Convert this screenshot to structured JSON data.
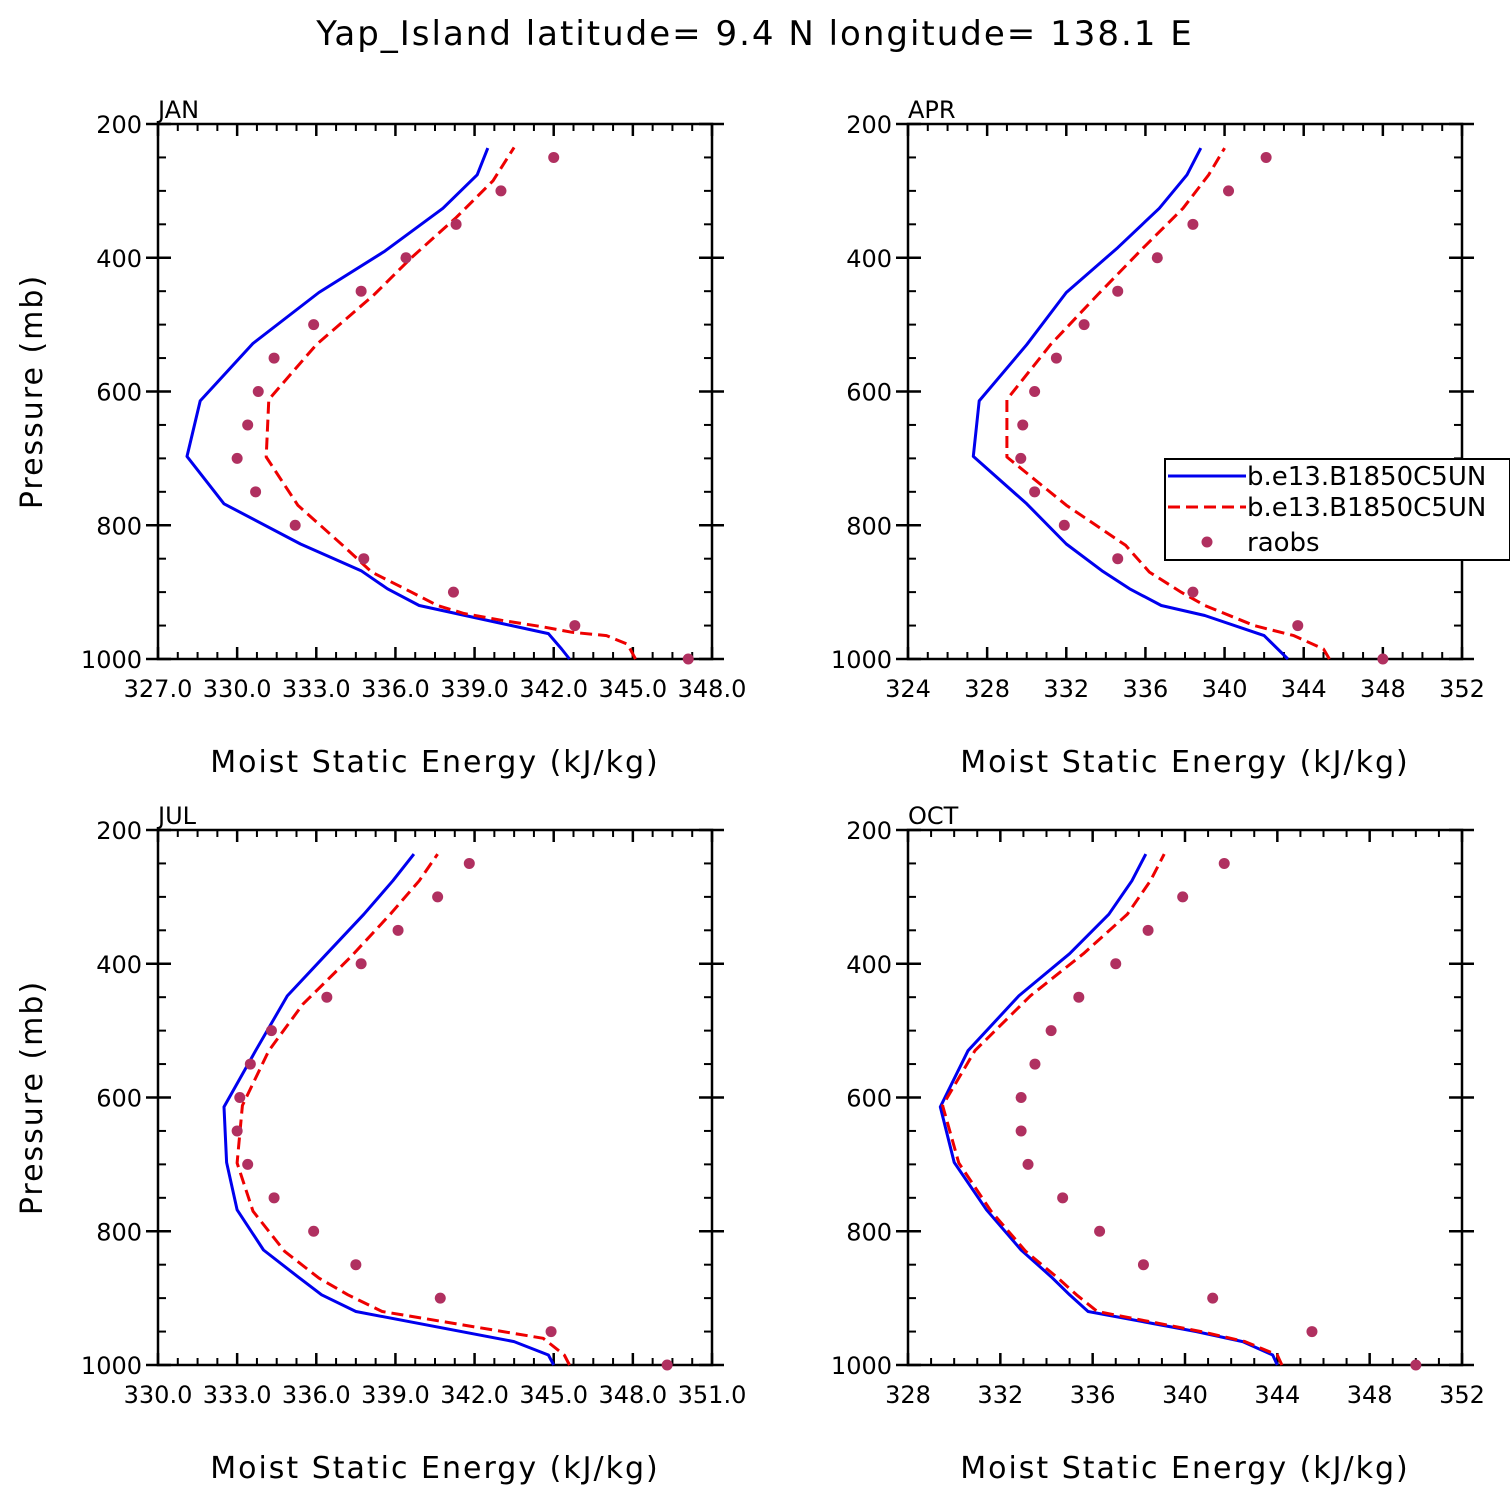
{
  "title": "Yap_Island  latitude= 9.4 N longitude= 138.1 E",
  "legend": {
    "entries": [
      "b.e13.B1850C5UN",
      "b.e13.B1850C5UN",
      "raobs"
    ]
  },
  "colors": {
    "model_a": "#0000ee",
    "model_b": "#ee0000",
    "raobs": "#b03060",
    "axis": "#000000"
  },
  "chart_data": [
    {
      "type": "line",
      "panel": "JAN",
      "xlabel": "Moist Static Energy (kJ/kg)",
      "ylabel": "Pressure (mb)",
      "xlim": [
        327,
        348
      ],
      "ylim": [
        1000,
        200
      ],
      "xticks": [
        327,
        330,
        333,
        336,
        339,
        342,
        345,
        348
      ],
      "xtick_labels": [
        "327.0",
        "330.0",
        "333.0",
        "336.0",
        "339.0",
        "342.0",
        "345.0",
        "348.0"
      ],
      "yticks": [
        200,
        400,
        600,
        800,
        1000
      ],
      "pressure_levels": [
        1000,
        975,
        950,
        925,
        900,
        875,
        850,
        825,
        800,
        775,
        750,
        725,
        700,
        675,
        650,
        625,
        600,
        550,
        500,
        450,
        400,
        350,
        300,
        250
      ],
      "series": [
        {
          "name": "b.e13.B1850C5UN",
          "style": "solid",
          "pressure": [
            1000,
            985,
            962,
            920,
            895,
            868,
            828,
            768,
            697,
            614,
            528,
            452,
            390,
            326,
            276,
            236
          ],
          "values": [
            342.6,
            342.3,
            341.8,
            336.9,
            335.7,
            334.7,
            332.4,
            329.5,
            328.1,
            328.6,
            330.6,
            333.1,
            335.6,
            337.8,
            339.1,
            339.5
          ]
        },
        {
          "name": "b.e13.B1850C5UN",
          "style": "dashed",
          "pressure": [
            1000,
            978,
            965,
            960,
            952,
            942,
            932,
            920,
            900,
            870,
            830,
            770,
            698,
            612,
            530,
            455,
            400,
            340,
            285,
            235
          ],
          "values": [
            345.1,
            344.8,
            344.0,
            342.7,
            341.6,
            340.0,
            338.6,
            337.6,
            336.6,
            335.1,
            334.0,
            332.3,
            331.1,
            331.2,
            333.0,
            335.2,
            336.6,
            338.3,
            339.7,
            340.5
          ]
        },
        {
          "name": "raobs",
          "style": "markers",
          "pressure": [
            250,
            300,
            350,
            400,
            450,
            500,
            550,
            600,
            650,
            700,
            750,
            800,
            850,
            900,
            950,
            1000
          ],
          "values": [
            342.0,
            340.0,
            338.3,
            336.4,
            334.7,
            332.9,
            331.4,
            330.8,
            330.4,
            330.0,
            330.7,
            332.2,
            334.8,
            338.2,
            342.8,
            347.1
          ]
        }
      ]
    },
    {
      "type": "line",
      "panel": "APR",
      "xlabel": "Moist Static Energy (kJ/kg)",
      "ylabel": "",
      "xlim": [
        324,
        352
      ],
      "ylim": [
        1000,
        200
      ],
      "xticks": [
        324,
        328,
        332,
        336,
        340,
        344,
        348,
        352
      ],
      "xtick_labels": [
        "324",
        "328",
        "332",
        "336",
        "340",
        "344",
        "348",
        "352"
      ],
      "yticks": [
        200,
        400,
        600,
        800,
        1000
      ],
      "series": [
        {
          "name": "b.e13.B1850C5UN",
          "style": "solid",
          "pressure": [
            1000,
            965,
            935,
            920,
            895,
            868,
            828,
            768,
            697,
            614,
            530,
            452,
            385,
            326,
            276,
            236
          ],
          "values": [
            343.2,
            342.0,
            339.0,
            336.8,
            335.2,
            333.8,
            332.0,
            330.0,
            327.3,
            327.6,
            330.0,
            332.0,
            334.6,
            336.7,
            338.1,
            338.8
          ]
        },
        {
          "name": "b.e13.B1850C5UN",
          "style": "dashed",
          "pressure": [
            1000,
            985,
            965,
            950,
            920,
            900,
            870,
            830,
            770,
            698,
            612,
            530,
            455,
            385,
            326,
            276,
            236
          ],
          "values": [
            345.3,
            345.0,
            343.5,
            341.5,
            339.0,
            337.8,
            336.2,
            335.0,
            332.0,
            329.0,
            329.0,
            331.2,
            333.6,
            335.9,
            337.9,
            339.2,
            340.0
          ]
        },
        {
          "name": "raobs",
          "style": "markers",
          "pressure": [
            250,
            300,
            350,
            400,
            450,
            500,
            550,
            600,
            650,
            700,
            750,
            800,
            850,
            900,
            950,
            1000
          ],
          "values": [
            342.1,
            340.2,
            338.4,
            336.6,
            334.6,
            332.9,
            331.5,
            330.4,
            329.8,
            329.7,
            330.4,
            331.9,
            334.6,
            338.4,
            343.7,
            348.0
          ]
        }
      ]
    },
    {
      "type": "line",
      "panel": "JUL",
      "xlabel": "Moist Static Energy (kJ/kg)",
      "ylabel": "Pressure (mb)",
      "xlim": [
        330,
        351
      ],
      "ylim": [
        1000,
        200
      ],
      "xticks": [
        330,
        333,
        336,
        339,
        342,
        345,
        348,
        351
      ],
      "xtick_labels": [
        "330.0",
        "333.0",
        "336.0",
        "339.0",
        "342.0",
        "345.0",
        "348.0",
        "351.0"
      ],
      "yticks": [
        200,
        400,
        600,
        800,
        1000
      ],
      "series": [
        {
          "name": "b.e13.B1850C5UN",
          "style": "solid",
          "pressure": [
            1000,
            985,
            965,
            920,
            895,
            868,
            828,
            768,
            697,
            614,
            530,
            448,
            385,
            326,
            276,
            236
          ],
          "values": [
            345.0,
            344.8,
            343.5,
            337.5,
            336.2,
            335.3,
            334.0,
            333.0,
            332.6,
            332.5,
            333.7,
            334.9,
            336.4,
            337.8,
            338.9,
            339.7
          ]
        },
        {
          "name": "b.e13.B1850C5UN",
          "style": "dashed",
          "pressure": [
            1000,
            985,
            960,
            920,
            895,
            870,
            830,
            770,
            698,
            612,
            530,
            460,
            390,
            326,
            276,
            236
          ],
          "values": [
            345.6,
            345.4,
            344.6,
            338.5,
            337.2,
            336.1,
            334.8,
            333.6,
            333.0,
            333.2,
            334.2,
            335.5,
            337.3,
            338.8,
            339.9,
            340.6
          ]
        },
        {
          "name": "raobs",
          "style": "markers",
          "pressure": [
            250,
            300,
            350,
            400,
            450,
            500,
            550,
            600,
            650,
            700,
            750,
            800,
            850,
            900,
            950,
            1000
          ],
          "values": [
            341.8,
            340.6,
            339.1,
            337.7,
            336.4,
            334.3,
            333.5,
            333.1,
            333.0,
            333.4,
            334.4,
            335.9,
            337.5,
            340.7,
            344.9,
            349.3
          ]
        }
      ]
    },
    {
      "type": "line",
      "panel": "OCT",
      "xlabel": "Moist Static Energy (kJ/kg)",
      "ylabel": "",
      "xlim": [
        328,
        352
      ],
      "ylim": [
        1000,
        200
      ],
      "xticks": [
        328,
        332,
        336,
        340,
        344,
        348,
        352
      ],
      "xtick_labels": [
        "328",
        "332",
        "336",
        "340",
        "344",
        "348",
        "352"
      ],
      "yticks": [
        200,
        400,
        600,
        800,
        1000
      ],
      "series": [
        {
          "name": "b.e13.B1850C5UN",
          "style": "solid",
          "pressure": [
            1000,
            985,
            965,
            950,
            920,
            895,
            868,
            828,
            768,
            697,
            614,
            530,
            448,
            385,
            326,
            276,
            236
          ],
          "values": [
            344.0,
            343.8,
            342.5,
            340.5,
            335.8,
            335.0,
            334.2,
            332.9,
            331.4,
            330.0,
            329.4,
            330.6,
            332.8,
            335.0,
            336.7,
            337.7,
            338.3
          ]
        },
        {
          "name": "b.e13.B1850C5UN",
          "style": "dashed",
          "pressure": [
            1000,
            985,
            965,
            950,
            920,
            895,
            870,
            830,
            770,
            698,
            612,
            530,
            448,
            385,
            326,
            276,
            236
          ],
          "values": [
            344.2,
            344.0,
            342.6,
            340.7,
            336.2,
            335.3,
            334.5,
            333.1,
            331.6,
            330.2,
            329.5,
            330.9,
            333.3,
            335.6,
            337.5,
            338.5,
            339.1
          ]
        },
        {
          "name": "raobs",
          "style": "markers",
          "pressure": [
            250,
            300,
            350,
            400,
            450,
            500,
            550,
            600,
            650,
            700,
            750,
            800,
            850,
            900,
            950,
            1000
          ],
          "values": [
            341.7,
            339.9,
            338.4,
            337.0,
            335.4,
            334.2,
            333.5,
            332.9,
            332.9,
            333.2,
            334.7,
            336.3,
            338.2,
            341.2,
            345.5,
            350.0
          ]
        }
      ]
    }
  ]
}
